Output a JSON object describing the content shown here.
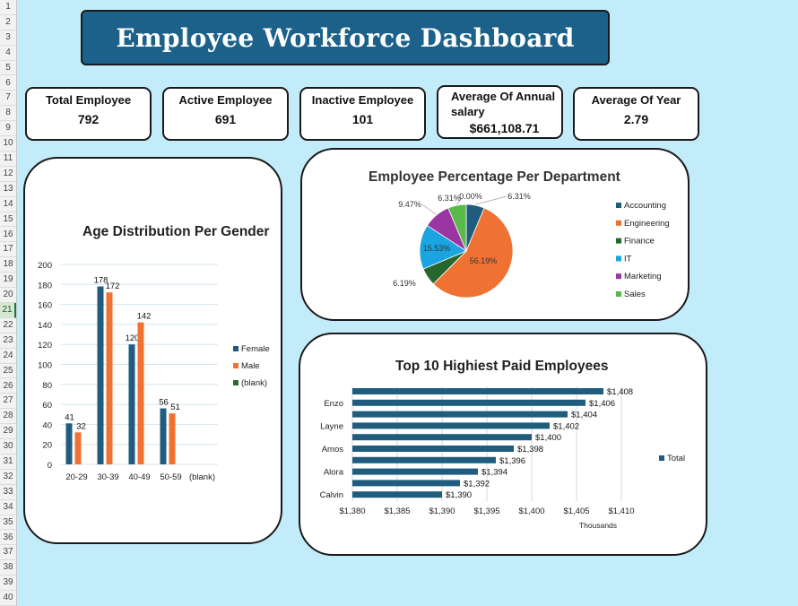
{
  "spreadsheet": {
    "row_numbers": [
      "1",
      "2",
      "3",
      "4",
      "5",
      "6",
      "7",
      "8",
      "9",
      "10",
      "11",
      "12",
      "13",
      "14",
      "15",
      "16",
      "17",
      "18",
      "19",
      "20",
      "21",
      "22",
      "23",
      "24",
      "25",
      "26",
      "27",
      "28",
      "29",
      "30",
      "31",
      "32",
      "33",
      "34",
      "35",
      "36",
      "37",
      "38",
      "39",
      "40"
    ],
    "selected_row": "21"
  },
  "dashboard": {
    "title": "Employee Workforce Dashboard"
  },
  "kpis": [
    {
      "label": "Total Employee",
      "value": "792"
    },
    {
      "label": "Active Employee",
      "value": "691"
    },
    {
      "label": "Inactive Employee",
      "value": "101"
    },
    {
      "label": "Average Of Annual salary",
      "value": "$661,108.71"
    },
    {
      "label": "Average Of Year",
      "value": "2.79"
    }
  ],
  "chart_data": [
    {
      "type": "bar",
      "title": "Age Distribution Per Gender",
      "categories": [
        "20-29",
        "30-39",
        "40-49",
        "50-59",
        "(blank)"
      ],
      "series": [
        {
          "name": "Female",
          "values": [
            41,
            178,
            120,
            56,
            null
          ],
          "color": "#1f5c7d"
        },
        {
          "name": "Male",
          "values": [
            32,
            172,
            142,
            51,
            null
          ],
          "color": "#f07232"
        },
        {
          "name": "(blank)",
          "values": [
            null,
            null,
            null,
            null,
            null
          ],
          "color": "#2a6b30"
        }
      ],
      "ylim": [
        0,
        200
      ],
      "yticks": [
        "0",
        "20",
        "40",
        "60",
        "80",
        "100",
        "120",
        "140",
        "160",
        "180",
        "200"
      ],
      "grid": true,
      "legend_position": "right"
    },
    {
      "type": "pie",
      "title": "Employee Percentage Per Department",
      "labels": [
        "Accounting",
        "Engineering",
        "Finance",
        "IT",
        "Marketing",
        "Sales"
      ],
      "values": [
        6.31,
        56.19,
        6.19,
        15.53,
        9.47,
        6.31
      ],
      "value_labels": [
        "6.31%",
        "56.19%",
        "6.19%",
        "15.53%",
        "9.47%",
        "6.31%"
      ],
      "extra_label": "0.00%",
      "colors": [
        "#1f5c7d",
        "#f07232",
        "#27662d",
        "#1aa4e0",
        "#9a35a2",
        "#5ab94b"
      ],
      "legend_position": "right"
    },
    {
      "type": "bar",
      "orientation": "horizontal",
      "title": "Top 10 Highiest Paid Employees",
      "values": [
        1408,
        1406,
        1404,
        1402,
        1400,
        1398,
        1396,
        1394,
        1392,
        1390
      ],
      "value_labels": [
        "$1,408",
        "$1,406",
        "$1,404",
        "$1,402",
        "$1,400",
        "$1,398",
        "$1,396",
        "$1,394",
        "$1,392",
        "$1,390"
      ],
      "row_labels": [
        "",
        "Enzo",
        "",
        "Layne",
        "",
        "Amos",
        "",
        "Alora",
        "",
        "Calvin"
      ],
      "xlim": [
        1380,
        1410
      ],
      "xticks": [
        "$1,380",
        "$1,385",
        "$1,390",
        "$1,395",
        "$1,400",
        "$1,405",
        "$1,410"
      ],
      "xlabel": "Thousands",
      "series_name": "Total",
      "color": "#1f5c7d",
      "grid": true,
      "legend_position": "right"
    }
  ]
}
